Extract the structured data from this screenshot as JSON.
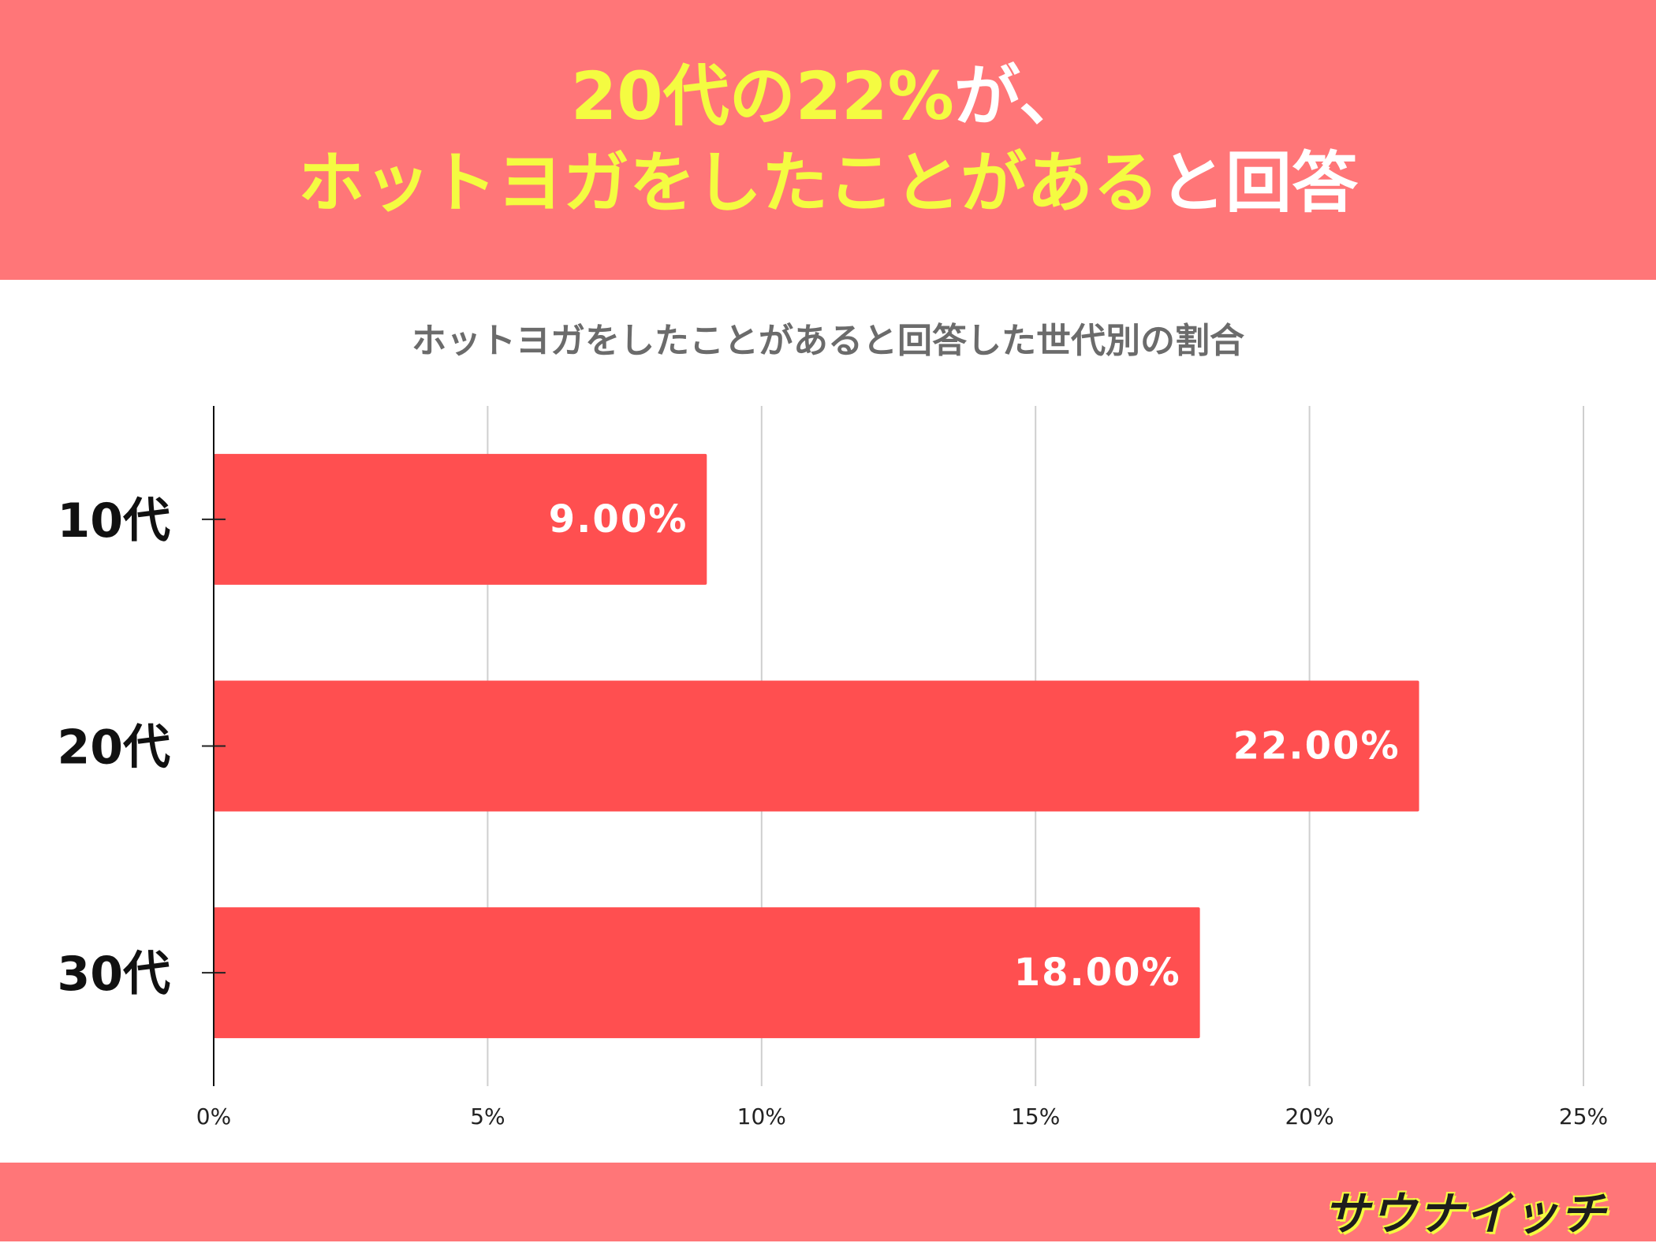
{
  "headline": {
    "line1_highlight": "20代の22%",
    "line1_rest": "が、",
    "line2_highlight": "ホットヨガをしたことがある",
    "line2_rest": "と回答"
  },
  "colors": {
    "banner": "#ff7678",
    "highlight_text": "#f4fb41",
    "bar": "#ff4f50"
  },
  "footer": {
    "logo": "サウナイッチ"
  },
  "chart_data": {
    "type": "bar",
    "orientation": "horizontal",
    "title": "ホットヨガをしたことがあると回答した世代別の割合",
    "categories": [
      "10代",
      "20代",
      "30代"
    ],
    "values": [
      9,
      22,
      18
    ],
    "data_labels": [
      "9.00%",
      "22.00%",
      "18.00%"
    ],
    "xlim": [
      0,
      25
    ],
    "x_ticks": [
      0,
      5,
      10,
      15,
      20,
      25
    ],
    "x_tick_labels": [
      "0%",
      "5%",
      "10%",
      "15%",
      "20%",
      "25%"
    ],
    "xlabel": "",
    "ylabel": "",
    "grid": "vertical",
    "legend": "none"
  }
}
